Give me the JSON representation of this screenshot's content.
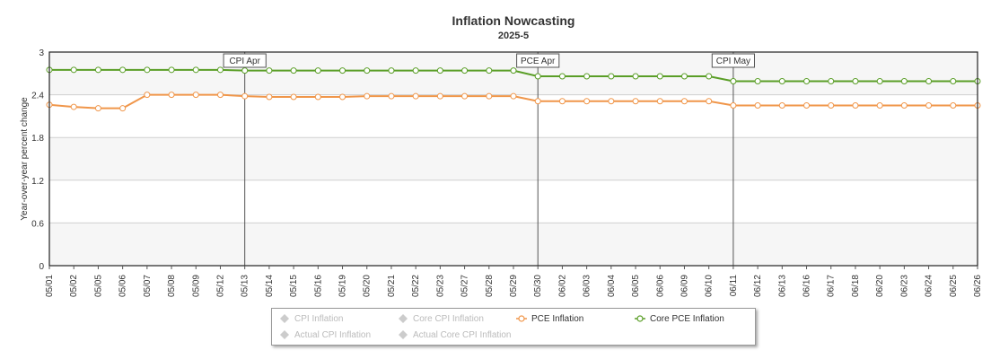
{
  "header": {
    "title": "Inflation Nowcasting",
    "subtitle": "2025-5"
  },
  "chart_data": {
    "type": "line",
    "ylabel": "Year-over-year percent change",
    "xlabel": "",
    "ylim": [
      0,
      3
    ],
    "yticks": [
      "0",
      "0.6",
      "1.2",
      "1.8",
      "2.4",
      "3"
    ],
    "categories": [
      "05/01",
      "05/02",
      "05/05",
      "05/06",
      "05/07",
      "05/08",
      "05/09",
      "05/12",
      "05/13",
      "05/14",
      "05/15",
      "05/16",
      "05/19",
      "05/20",
      "05/21",
      "05/22",
      "05/23",
      "05/27",
      "05/28",
      "05/29",
      "05/30",
      "06/02",
      "06/03",
      "06/04",
      "06/05",
      "06/06",
      "06/09",
      "06/10",
      "06/11",
      "06/12",
      "06/13",
      "06/16",
      "06/17",
      "06/18",
      "06/20",
      "06/23",
      "06/24",
      "06/25",
      "06/26"
    ],
    "series": [
      {
        "name": "Core PCE Inflation",
        "color": "#5a9e27",
        "values": [
          2.75,
          2.75,
          2.75,
          2.75,
          2.75,
          2.75,
          2.75,
          2.75,
          2.74,
          2.74,
          2.74,
          2.74,
          2.74,
          2.74,
          2.74,
          2.74,
          2.74,
          2.74,
          2.74,
          2.74,
          2.66,
          2.66,
          2.66,
          2.66,
          2.66,
          2.66,
          2.66,
          2.66,
          2.59,
          2.59,
          2.59,
          2.59,
          2.59,
          2.59,
          2.59,
          2.59,
          2.59,
          2.59,
          2.59
        ]
      },
      {
        "name": "PCE Inflation",
        "color": "#f0964a",
        "values": [
          2.26,
          2.23,
          2.21,
          2.21,
          2.4,
          2.4,
          2.4,
          2.4,
          2.38,
          2.37,
          2.37,
          2.37,
          2.37,
          2.38,
          2.38,
          2.38,
          2.38,
          2.38,
          2.38,
          2.38,
          2.31,
          2.31,
          2.31,
          2.31,
          2.31,
          2.31,
          2.31,
          2.31,
          2.25,
          2.25,
          2.25,
          2.25,
          2.25,
          2.25,
          2.25,
          2.25,
          2.25,
          2.25,
          2.25
        ]
      }
    ],
    "annotations": [
      {
        "label": "CPI Apr",
        "category": "05/13"
      },
      {
        "label": "PCE Apr",
        "category": "05/30"
      },
      {
        "label": "CPI May",
        "category": "06/11"
      }
    ],
    "legend": {
      "position": "bottom",
      "items": [
        {
          "name": "CPI Inflation",
          "enabled": false,
          "symbol": "diamond",
          "color": "#cccccc"
        },
        {
          "name": "Core CPI Inflation",
          "enabled": false,
          "symbol": "diamond",
          "color": "#cccccc"
        },
        {
          "name": "PCE Inflation",
          "enabled": true,
          "symbol": "circle",
          "color": "#f0964a"
        },
        {
          "name": "Core PCE Inflation",
          "enabled": true,
          "symbol": "circle",
          "color": "#5a9e27"
        },
        {
          "name": "Actual CPI Inflation",
          "enabled": false,
          "symbol": "diamond",
          "color": "#cccccc"
        },
        {
          "name": "Actual Core CPI Inflation",
          "enabled": false,
          "symbol": "diamond",
          "color": "#cccccc"
        }
      ]
    },
    "grid": true
  }
}
